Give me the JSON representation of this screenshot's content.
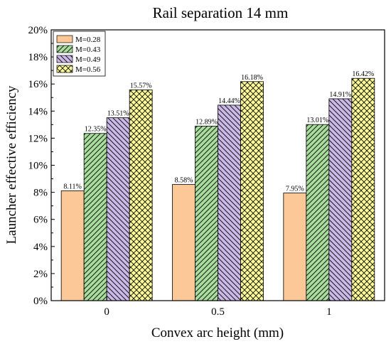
{
  "chart_data": {
    "type": "bar",
    "title": "Rail separation 14 mm",
    "xlabel": "Convex arc height (mm)",
    "ylabel": "Launcher effective efficiency",
    "categories": [
      "0",
      "0.5",
      "1"
    ],
    "ylim": [
      0,
      20
    ],
    "y_ticks": [
      "0%",
      "2%",
      "4%",
      "6%",
      "8%",
      "10%",
      "12%",
      "14%",
      "16%",
      "18%",
      "20%"
    ],
    "grid": false,
    "legend_position": "top-left",
    "series": [
      {
        "name": "M=0.28",
        "values": [
          8.11,
          8.58,
          7.95
        ],
        "labels": [
          "8.11%",
          "8.58%",
          "7.95%"
        ],
        "color": "#fdc898",
        "pattern": "solid"
      },
      {
        "name": "M=0.43",
        "values": [
          12.35,
          12.89,
          13.01
        ],
        "labels": [
          "12.35%",
          "12.89%",
          "13.01%"
        ],
        "color": "#a8dc9c",
        "pattern": "forward-diagonal"
      },
      {
        "name": "M=0.49",
        "values": [
          13.51,
          14.44,
          14.91
        ],
        "labels": [
          "13.51%",
          "14.44%",
          "14.91%"
        ],
        "color": "#cbb8e6",
        "pattern": "back-diagonal"
      },
      {
        "name": "M=0.56",
        "values": [
          15.57,
          16.18,
          16.42
        ],
        "labels": [
          "15.57%",
          "16.18%",
          "16.42%"
        ],
        "color": "#fbf89a",
        "pattern": "crosshatch"
      }
    ]
  }
}
